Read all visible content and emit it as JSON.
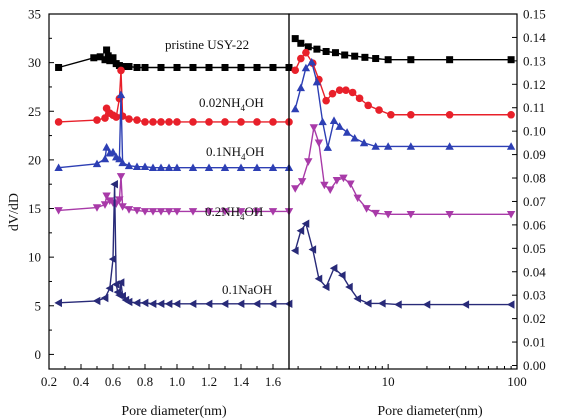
{
  "chart_data": [
    {
      "type": "line",
      "panel": "left",
      "xlabel": "Pore diameter(nm)",
      "ylabel": "dV/dD",
      "xlim": [
        0.2,
        1.7
      ],
      "ylim": [
        -1.5,
        35
      ],
      "x_ticks": [
        0.2,
        0.4,
        0.6,
        0.8,
        1.0,
        1.2,
        1.4,
        1.6
      ],
      "x_tick_labels": [
        "0.2",
        "0.4",
        "0.6",
        "0.8",
        "1.0",
        "1.2",
        "1.4",
        "1.6"
      ],
      "y_ticks": [
        0,
        5,
        10,
        15,
        20,
        25,
        30,
        35
      ],
      "y_tick_labels": [
        "0",
        "5",
        "10",
        "15",
        "20",
        "25",
        "30",
        "35"
      ],
      "series": [
        {
          "label": "pristine USY-22",
          "label_lines": [
            {
              "text": "pristine USY-22"
            }
          ],
          "color": "#000000",
          "marker": "square",
          "x": [
            0.26,
            0.48,
            0.52,
            0.55,
            0.56,
            0.57,
            0.58,
            0.6,
            0.62,
            0.64,
            0.66,
            0.7,
            0.75,
            0.8,
            0.9,
            1.0,
            1.1,
            1.2,
            1.3,
            1.4,
            1.5,
            1.6,
            1.7
          ],
          "y": [
            29.5,
            30.5,
            30.6,
            30.3,
            31.3,
            30.7,
            30.2,
            30.5,
            29.9,
            29.7,
            29.6,
            29.6,
            29.5,
            29.5,
            29.5,
            29.5,
            29.5,
            29.5,
            29.5,
            29.5,
            29.5,
            29.5,
            29.5
          ]
        },
        {
          "label": "0.02NH4OH",
          "label_lines": [
            {
              "text": "0.02NH",
              "sub": "4",
              "after": "OH"
            }
          ],
          "color": "#e8202a",
          "marker": "circle",
          "x": [
            0.26,
            0.5,
            0.55,
            0.56,
            0.58,
            0.6,
            0.62,
            0.64,
            0.65,
            0.66,
            0.7,
            0.75,
            0.8,
            0.85,
            0.9,
            0.95,
            1.0,
            1.1,
            1.2,
            1.3,
            1.4,
            1.5,
            1.6,
            1.7
          ],
          "y": [
            23.9,
            24.1,
            24.3,
            25.3,
            24.8,
            24.6,
            24.4,
            26.3,
            29.2,
            24.5,
            24.2,
            24.1,
            23.9,
            23.9,
            23.9,
            23.9,
            23.9,
            23.9,
            23.9,
            23.9,
            23.9,
            23.9,
            23.9,
            23.9
          ]
        },
        {
          "label": "0.1NH4OH",
          "label_lines": [
            {
              "text": "0.1NH",
              "sub": "4",
              "after": "OH"
            }
          ],
          "color": "#2d3fb4",
          "marker": "triangle-up",
          "x": [
            0.26,
            0.5,
            0.55,
            0.56,
            0.58,
            0.6,
            0.62,
            0.64,
            0.65,
            0.66,
            0.7,
            0.75,
            0.8,
            0.85,
            0.9,
            0.95,
            1.0,
            1.1,
            1.2,
            1.3,
            1.4,
            1.5,
            1.6,
            1.7
          ],
          "y": [
            19.2,
            19.6,
            20.1,
            21.3,
            20.7,
            20.8,
            20.3,
            20.1,
            26.7,
            19.7,
            19.4,
            19.3,
            19.3,
            19.2,
            19.2,
            19.2,
            19.2,
            19.2,
            19.2,
            19.2,
            19.2,
            19.2,
            19.2,
            19.2
          ]
        },
        {
          "label": "0.2NH4OH",
          "label_lines": [
            {
              "text": "0.2NH",
              "sub": "4",
              "after": "OH"
            }
          ],
          "color": "#a83aa8",
          "marker": "triangle-down",
          "x": [
            0.26,
            0.5,
            0.55,
            0.56,
            0.58,
            0.6,
            0.62,
            0.64,
            0.65,
            0.66,
            0.7,
            0.75,
            0.8,
            0.85,
            0.9,
            0.95,
            1.0,
            1.1,
            1.2,
            1.3,
            1.4,
            1.5,
            1.6,
            1.7
          ],
          "y": [
            14.8,
            15.1,
            15.4,
            16.3,
            15.8,
            15.6,
            15.5,
            15.9,
            18.3,
            15.2,
            14.9,
            14.8,
            14.7,
            14.7,
            14.7,
            14.7,
            14.7,
            14.7,
            14.7,
            14.7,
            14.7,
            14.7,
            14.7,
            14.7
          ]
        },
        {
          "label": "0.1NaOH",
          "label_lines": [
            {
              "text": "0.1NaOH"
            }
          ],
          "color": "#282a78",
          "marker": "triangle-left",
          "x": [
            0.26,
            0.5,
            0.55,
            0.58,
            0.6,
            0.61,
            0.62,
            0.63,
            0.64,
            0.65,
            0.66,
            0.68,
            0.7,
            0.75,
            0.8,
            0.85,
            0.9,
            0.95,
            1.0,
            1.1,
            1.2,
            1.3,
            1.4,
            1.5,
            1.6,
            1.7
          ],
          "y": [
            5.3,
            5.5,
            5.8,
            6.8,
            9.8,
            17.5,
            7.2,
            6.4,
            6.1,
            7.4,
            6.0,
            5.6,
            5.4,
            5.3,
            5.3,
            5.2,
            5.2,
            5.2,
            5.2,
            5.2,
            5.2,
            5.2,
            5.2,
            5.2,
            5.2,
            5.2
          ]
        }
      ]
    },
    {
      "type": "line",
      "panel": "right",
      "xlabel": "Pore diameter(nm)",
      "xscale": "log",
      "xlim": [
        1.7,
        100
      ],
      "ylim": [
        -0.0015,
        0.15
      ],
      "x_ticks": [
        10,
        100
      ],
      "x_tick_labels": [
        "10",
        "100"
      ],
      "y_ticks": [
        0.0,
        0.01,
        0.02,
        0.03,
        0.04,
        0.05,
        0.06,
        0.07,
        0.08,
        0.09,
        0.1,
        0.11,
        0.12,
        0.13,
        0.14,
        0.15
      ],
      "y_tick_labels": [
        "0.00",
        "0.01",
        "0.02",
        "0.03",
        "0.04",
        "0.05",
        "0.06",
        "0.07",
        "0.08",
        "0.09",
        "0.10",
        "0.11",
        "0.12",
        "0.13",
        "0.14",
        "0.15"
      ],
      "series": [
        {
          "color": "#000000",
          "marker": "square",
          "x": [
            1.9,
            2.1,
            2.4,
            2.8,
            3.3,
            3.9,
            4.6,
            5.5,
            6.6,
            8.0,
            10,
            15,
            30,
            90
          ],
          "y": [
            0.1395,
            0.1375,
            0.136,
            0.135,
            0.134,
            0.1335,
            0.1325,
            0.132,
            0.1315,
            0.131,
            0.1305,
            0.1305,
            0.1305,
            0.1305
          ]
        },
        {
          "color": "#e8202a",
          "marker": "circle",
          "x": [
            1.9,
            2.1,
            2.3,
            2.6,
            2.9,
            3.3,
            3.7,
            4.2,
            4.7,
            5.3,
            6.0,
            7.0,
            8.5,
            10.5,
            15,
            30,
            90
          ],
          "y": [
            0.126,
            0.131,
            0.1335,
            0.129,
            0.122,
            0.113,
            0.116,
            0.1175,
            0.1175,
            0.1165,
            0.114,
            0.111,
            0.109,
            0.107,
            0.107,
            0.107,
            0.107
          ]
        },
        {
          "color": "#2d3fb4",
          "marker": "triangle-up",
          "x": [
            1.9,
            2.1,
            2.3,
            2.55,
            2.8,
            3.1,
            3.4,
            3.8,
            4.2,
            4.8,
            5.5,
            6.5,
            8.0,
            10,
            15,
            30,
            90
          ],
          "y": [
            0.1095,
            0.1185,
            0.127,
            0.1295,
            0.121,
            0.104,
            0.093,
            0.1045,
            0.102,
            0.0995,
            0.097,
            0.095,
            0.0935,
            0.0935,
            0.0935,
            0.0935,
            0.0935
          ]
        },
        {
          "color": "#a83aa8",
          "marker": "triangle-down",
          "x": [
            1.9,
            2.15,
            2.4,
            2.65,
            2.9,
            3.2,
            3.55,
            4.0,
            4.5,
            5.1,
            5.8,
            6.8,
            8.0,
            10,
            15,
            30,
            90
          ],
          "y": [
            0.0755,
            0.0785,
            0.087,
            0.1015,
            0.095,
            0.077,
            0.075,
            0.079,
            0.08,
            0.0775,
            0.0715,
            0.067,
            0.065,
            0.0645,
            0.0645,
            0.0645,
            0.0645
          ]
        },
        {
          "color": "#282a78",
          "marker": "triangle-left",
          "x": [
            1.9,
            2.1,
            2.3,
            2.6,
            2.9,
            3.3,
            3.8,
            4.4,
            5.0,
            5.8,
            7.0,
            9.0,
            12,
            20,
            40,
            90
          ],
          "y": [
            0.049,
            0.0575,
            0.0605,
            0.0495,
            0.037,
            0.0335,
            0.0415,
            0.0385,
            0.0335,
            0.0285,
            0.0265,
            0.0265,
            0.026,
            0.026,
            0.026,
            0.026
          ]
        }
      ]
    }
  ]
}
